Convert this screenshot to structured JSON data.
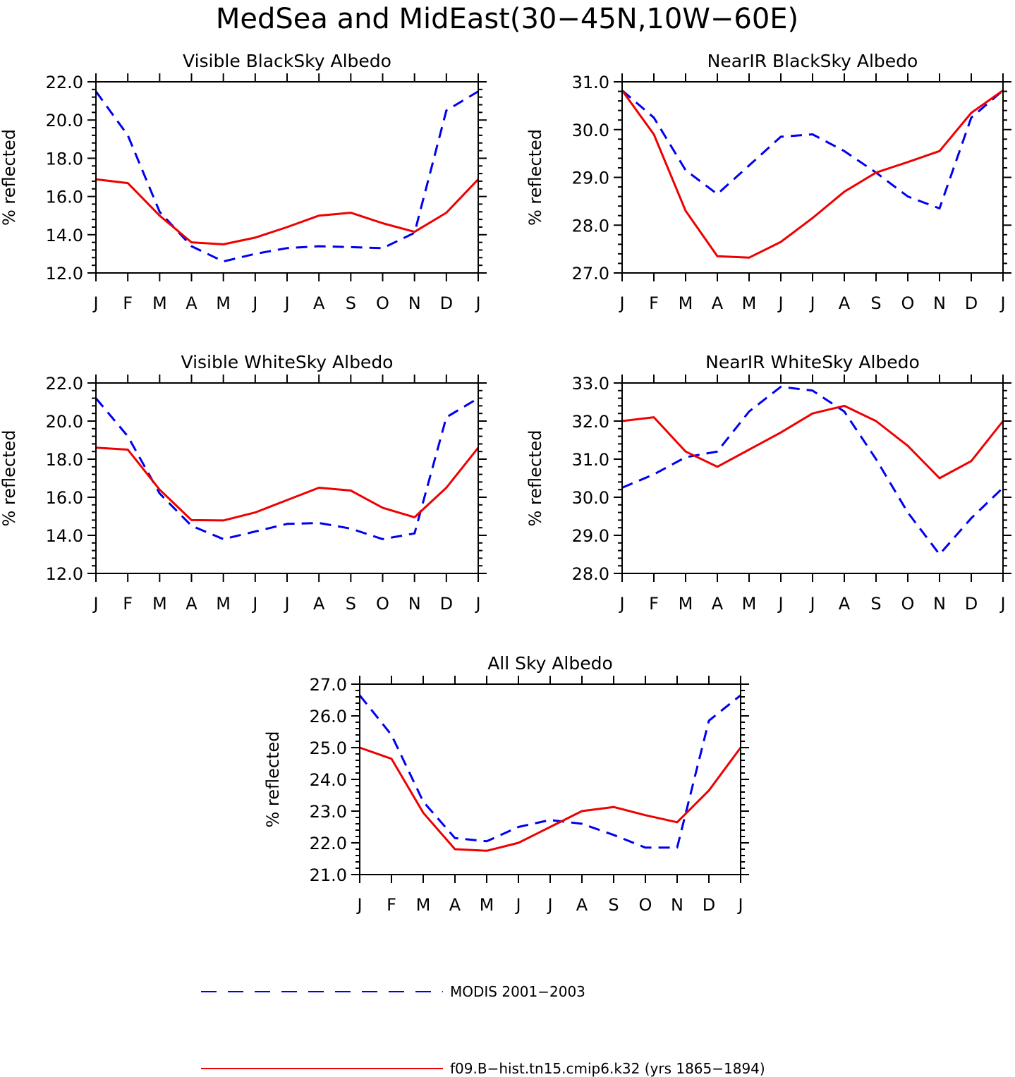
{
  "title": "MedSea and MidEast(30−45N,10W−60E)",
  "colors": {
    "modis": "#0000ee",
    "model": "#ee0000"
  },
  "legend": {
    "entries": [
      {
        "label": "MODIS 2001−2003",
        "series": "modis",
        "style": "dashed"
      },
      {
        "label": "f09.B−hist.tn15.cmip6.k32 (yrs 1865−1894)",
        "series": "model",
        "style": "solid"
      }
    ]
  },
  "chart_data": [
    {
      "type": "line",
      "title": "Visible BlackSky Albedo",
      "ylabel": "% reflected",
      "categories": [
        "J",
        "F",
        "M",
        "A",
        "M",
        "J",
        "J",
        "A",
        "S",
        "O",
        "N",
        "D",
        "J"
      ],
      "ylim": [
        12.0,
        22.0
      ],
      "yticks": [
        "12.0",
        "14.0",
        "16.0",
        "18.0",
        "20.0",
        "22.0"
      ],
      "series": [
        {
          "name": "MODIS 2001−2003",
          "key": "modis",
          "values": [
            21.5,
            19.2,
            15.2,
            13.4,
            12.6,
            13.0,
            13.3,
            13.4,
            13.35,
            13.3,
            14.1,
            20.5,
            21.5
          ]
        },
        {
          "name": "f09.B−hist.tn15.cmip6.k32 (yrs 1865−1894)",
          "key": "model",
          "values": [
            16.9,
            16.7,
            15.0,
            13.6,
            13.5,
            13.85,
            14.4,
            15.0,
            15.15,
            14.6,
            14.15,
            15.15,
            16.9
          ]
        }
      ]
    },
    {
      "type": "line",
      "title": "NearIR BlackSky Albedo",
      "ylabel": "% reflected",
      "categories": [
        "J",
        "F",
        "M",
        "A",
        "M",
        "J",
        "J",
        "A",
        "S",
        "O",
        "N",
        "D",
        "J"
      ],
      "ylim": [
        27.0,
        31.0
      ],
      "yticks": [
        "27.0",
        "28.0",
        "29.0",
        "30.0",
        "31.0"
      ],
      "series": [
        {
          "name": "MODIS 2001−2003",
          "key": "modis",
          "values": [
            30.82,
            30.25,
            29.15,
            28.65,
            29.25,
            29.85,
            29.9,
            29.55,
            29.1,
            28.6,
            28.35,
            30.25,
            30.82
          ]
        },
        {
          "name": "f09.B−hist.tn15.cmip6.k32 (yrs 1865−1894)",
          "key": "model",
          "values": [
            30.82,
            29.9,
            28.3,
            27.35,
            27.32,
            27.65,
            28.15,
            28.7,
            29.1,
            29.32,
            29.55,
            30.35,
            30.82
          ]
        }
      ]
    },
    {
      "type": "line",
      "title": "Visible WhiteSky Albedo",
      "ylabel": "% reflected",
      "categories": [
        "J",
        "F",
        "M",
        "A",
        "M",
        "J",
        "J",
        "A",
        "S",
        "O",
        "N",
        "D",
        "J"
      ],
      "ylim": [
        12.0,
        22.0
      ],
      "yticks": [
        "12.0",
        "14.0",
        "16.0",
        "18.0",
        "20.0",
        "22.0"
      ],
      "series": [
        {
          "name": "MODIS 2001−2003",
          "key": "modis",
          "values": [
            21.2,
            19.2,
            16.2,
            14.5,
            13.8,
            14.2,
            14.6,
            14.65,
            14.35,
            13.8,
            14.1,
            20.2,
            21.2
          ]
        },
        {
          "name": "f09.B−hist.tn15.cmip6.k32 (yrs 1865−1894)",
          "key": "model",
          "values": [
            18.6,
            18.5,
            16.4,
            14.8,
            14.78,
            15.2,
            15.85,
            16.5,
            16.35,
            15.45,
            14.95,
            16.5,
            18.6
          ]
        }
      ]
    },
    {
      "type": "line",
      "title": "NearIR WhiteSky Albedo",
      "ylabel": "% reflected",
      "categories": [
        "J",
        "F",
        "M",
        "A",
        "M",
        "J",
        "J",
        "A",
        "S",
        "O",
        "N",
        "D",
        "J"
      ],
      "ylim": [
        28.0,
        33.0
      ],
      "yticks": [
        "28.0",
        "29.0",
        "30.0",
        "31.0",
        "32.0",
        "33.0"
      ],
      "series": [
        {
          "name": "MODIS 2001−2003",
          "key": "modis",
          "values": [
            30.25,
            30.6,
            31.05,
            31.2,
            32.25,
            32.9,
            32.8,
            32.25,
            31.0,
            29.6,
            28.5,
            29.45,
            30.25
          ]
        },
        {
          "name": "f09.B−hist.tn15.cmip6.k32 (yrs 1865−1894)",
          "key": "model",
          "values": [
            32.0,
            32.1,
            31.2,
            30.8,
            31.25,
            31.7,
            32.2,
            32.4,
            32.0,
            31.35,
            30.5,
            30.95,
            32.0
          ]
        }
      ]
    },
    {
      "type": "line",
      "title": "All Sky Albedo",
      "ylabel": "% reflected",
      "categories": [
        "J",
        "F",
        "M",
        "A",
        "M",
        "J",
        "J",
        "A",
        "S",
        "O",
        "N",
        "D",
        "J"
      ],
      "ylim": [
        21.0,
        27.0
      ],
      "yticks": [
        "21.0",
        "22.0",
        "23.0",
        "24.0",
        "25.0",
        "26.0",
        "27.0"
      ],
      "series": [
        {
          "name": "MODIS 2001−2003",
          "key": "modis",
          "values": [
            26.65,
            25.4,
            23.3,
            22.15,
            22.05,
            22.5,
            22.72,
            22.6,
            22.25,
            21.85,
            21.85,
            25.85,
            26.65
          ]
        },
        {
          "name": "f09.B−hist.tn15.cmip6.k32 (yrs 1865−1894)",
          "key": "model",
          "values": [
            25.0,
            24.65,
            22.95,
            21.8,
            21.75,
            22.0,
            22.5,
            23.0,
            23.13,
            22.87,
            22.65,
            23.65,
            25.0
          ]
        }
      ]
    }
  ]
}
